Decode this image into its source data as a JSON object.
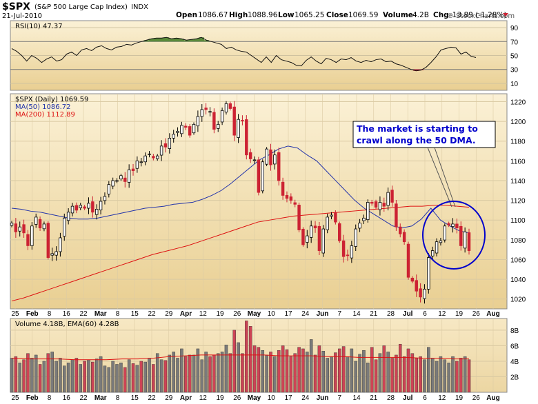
{
  "header": {
    "symbol": "$SPX",
    "description": "(S&P 500 Large Cap Index)",
    "exchange": "INDX",
    "date": "21-Jul-2010",
    "open_label": "Open",
    "open": "1086.67",
    "high_label": "High",
    "high": "1088.96",
    "low_label": "Low",
    "low": "1065.25",
    "close_label": "Close",
    "close": "1069.59",
    "volume_label": "Volume",
    "volume": "4.2B",
    "chg_label": "Chg",
    "chg": "-13.89 (-1.28%)",
    "copyright": "© StockCharts.com"
  },
  "rsi_legend": "RSI(10) 47.37",
  "price_legend": {
    "main": "$SPX (Daily) 1069.59",
    "ma50": "MA(50) 1086.72",
    "ma200": "MA(200) 1112.89"
  },
  "volume_legend": "Volume 4.18B, EMA(60) 4.28B",
  "annotation": "The market is starting to crawl along the 50 DMA.",
  "colors": {
    "background": "#f3e2b6",
    "up": "#ffffff",
    "down": "#cc2233",
    "ma50": "#2233aa",
    "ma200": "#dd1111",
    "rsi_fill": "#5a8a3a",
    "vol_up": "#7a7a7a",
    "vol_down": "#cc4455",
    "annotation": "#0000cc"
  },
  "chart_data": [
    {
      "type": "line",
      "title": "RSI(10) 47.37",
      "y_ticks": [
        10,
        30,
        50,
        70,
        90
      ],
      "ylim": [
        0,
        100
      ],
      "values": [
        60,
        56,
        50,
        42,
        50,
        46,
        40,
        45,
        48,
        42,
        44,
        52,
        55,
        50,
        58,
        60,
        57,
        62,
        64,
        60,
        58,
        62,
        63,
        66,
        65,
        68,
        70,
        72,
        74,
        75,
        75,
        76,
        74,
        75,
        74,
        72,
        73,
        74,
        76,
        72,
        70,
        68,
        66,
        60,
        62,
        58,
        56,
        55,
        50,
        45,
        40,
        48,
        40,
        50,
        44,
        42,
        40,
        36,
        35,
        43,
        48,
        42,
        38,
        46,
        44,
        40,
        45,
        44,
        47,
        42,
        40,
        43,
        41,
        44,
        45,
        41,
        42,
        38,
        36,
        33,
        30,
        28,
        29,
        33,
        40,
        48,
        58,
        60,
        62,
        61,
        52,
        55,
        49,
        47
      ]
    },
    {
      "type": "candlestick",
      "title": "$SPX (Daily) 1069.59",
      "y_ticks": [
        1020,
        1040,
        1060,
        1080,
        1100,
        1120,
        1140,
        1160,
        1180,
        1200,
        1220
      ],
      "ylim": [
        1010,
        1228
      ],
      "x_labels": [
        "25",
        "Feb",
        "8",
        "16",
        "22",
        "Mar",
        "8",
        "15",
        "22",
        "29",
        "Apr",
        "12",
        "19",
        "26",
        "May",
        "10",
        "17",
        "24",
        "Jun",
        "7",
        "14",
        "21",
        "28",
        "Jul",
        "6",
        "12",
        "19",
        "26",
        "Aug"
      ],
      "closes": [
        1097,
        1088,
        1093,
        1087,
        1074,
        1094,
        1103,
        1092,
        1096,
        1062,
        1066,
        1068,
        1082,
        1102,
        1108,
        1114,
        1110,
        1115,
        1112,
        1117,
        1108,
        1111,
        1119,
        1124,
        1136,
        1140,
        1140,
        1145,
        1139,
        1151,
        1150,
        1160,
        1159,
        1165,
        1167,
        1163,
        1165,
        1175,
        1174,
        1183,
        1187,
        1190,
        1196,
        1194,
        1186,
        1197,
        1205,
        1212,
        1212,
        1210,
        1192,
        1197,
        1211,
        1218,
        1213,
        1186,
        1202,
        1201,
        1166,
        1162,
        1161,
        1128,
        1159,
        1172,
        1156,
        1166,
        1140,
        1125,
        1122,
        1120,
        1116,
        1090,
        1075,
        1084,
        1094,
        1092,
        1069,
        1091,
        1103,
        1105,
        1098,
        1079,
        1063,
        1064,
        1074,
        1091,
        1097,
        1102,
        1118,
        1117,
        1113,
        1118,
        1114,
        1128,
        1118,
        1093,
        1086,
        1078,
        1042,
        1038,
        1028,
        1022,
        1030,
        1062,
        1069,
        1078,
        1079,
        1094,
        1095,
        1096,
        1092,
        1074,
        1088,
        1069
      ],
      "ma50": [
        1112,
        1111,
        1109,
        1108,
        1106,
        1104,
        1102,
        1101,
        1101,
        1102,
        1104,
        1106,
        1108,
        1110,
        1112,
        1113,
        1114,
        1116,
        1117,
        1118,
        1121,
        1125,
        1130,
        1137,
        1145,
        1153,
        1161,
        1166,
        1172,
        1175,
        1173,
        1166,
        1160,
        1150,
        1140,
        1130,
        1120,
        1112,
        1106,
        1100,
        1094,
        1092,
        1094,
        1101,
        1112,
        1100,
        1094,
        1089,
        1087
      ],
      "ma200": [
        1018,
        1021,
        1025,
        1029,
        1033,
        1037,
        1041,
        1045,
        1049,
        1053,
        1057,
        1061,
        1065,
        1068,
        1071,
        1074,
        1078,
        1082,
        1086,
        1090,
        1094,
        1098,
        1100,
        1102,
        1104,
        1105,
        1106,
        1107,
        1108,
        1109,
        1110,
        1111,
        1112,
        1113,
        1114,
        1114,
        1115,
        1115,
        1114,
        1113
      ]
    },
    {
      "type": "bar",
      "title": "Volume 4.18B, EMA(60) 4.28B",
      "y_ticks": [
        "2B",
        "4B",
        "6B",
        "8B"
      ],
      "ylim": [
        0,
        9.5
      ],
      "values": [
        4.4,
        4.6,
        3.8,
        4.2,
        5.0,
        4.4,
        4.8,
        3.6,
        4.0,
        5.0,
        5.2,
        4.0,
        4.4,
        3.4,
        3.8,
        4.2,
        4.4,
        3.6,
        4.0,
        4.2,
        3.9,
        4.3,
        4.6,
        3.4,
        3.2,
        4.0,
        3.6,
        3.8,
        3.2,
        4.2,
        3.7,
        3.5,
        4.0,
        3.9,
        4.4,
        3.6,
        5.0,
        4.2,
        4.1,
        4.8,
        5.2,
        4.4,
        5.6,
        4.6,
        4.8,
        4.8,
        5.6,
        4.2,
        5.2,
        4.6,
        4.8,
        5.0,
        5.2,
        6.1,
        5.0,
        8.0,
        6.4,
        5.0,
        9.2,
        8.5,
        6.0,
        5.8,
        5.4,
        4.8,
        5.2,
        4.6,
        5.4,
        6.0,
        5.5,
        4.6,
        5.0,
        5.8,
        5.6,
        5.2,
        6.8,
        4.8,
        6.0,
        5.3,
        4.4,
        4.6,
        5.1,
        5.6,
        5.9,
        4.6,
        5.6,
        4.0,
        4.9,
        5.4,
        3.8,
        5.8,
        4.2,
        5.0,
        6.0,
        5.2,
        4.4,
        4.8,
        6.2,
        4.6,
        5.6,
        5.0,
        4.4,
        4.6,
        4.2,
        5.8,
        4.4,
        4.0,
        4.6,
        4.2,
        3.8,
        4.6,
        4.0,
        4.4,
        4.6,
        4.2
      ],
      "ema60": [
        4.4,
        4.3,
        4.3,
        4.3,
        4.2,
        4.2,
        4.2,
        4.3,
        4.3,
        4.4,
        4.6,
        4.7,
        4.8,
        4.8,
        4.8,
        4.8,
        4.8,
        4.7,
        4.7,
        4.7,
        4.6,
        4.6,
        4.5,
        4.5,
        4.5,
        4.5,
        4.4,
        4.4,
        4.3,
        4.3
      ]
    }
  ]
}
